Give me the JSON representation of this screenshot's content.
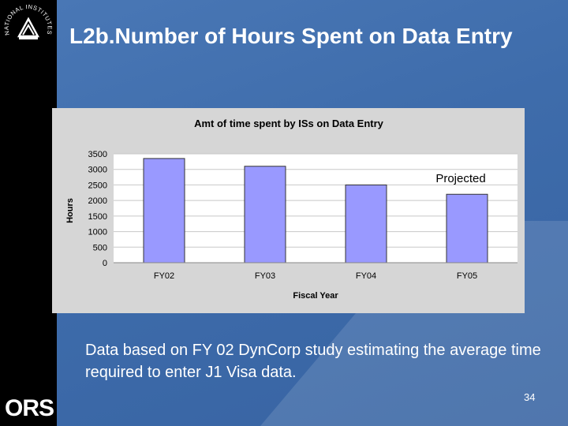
{
  "slide": {
    "title": "L2b.Number of Hours Spent on Data Entry",
    "caption": "Data based on FY 02 DynCorp study estimating the average time required to enter J1 Visa data.",
    "page_number": "34",
    "logo_top_text": "NATIONAL INSTITUTES OF HEALTH",
    "logo_bottom_text": "ORS"
  },
  "colors": {
    "background": "#3e6cab",
    "sidebar": "#000000",
    "bar": "#9999ff",
    "plot_bg": "#ffffff",
    "panel_bg": "#d6d6d6"
  },
  "chart_data": {
    "type": "bar",
    "title": "Amt of time spent by ISs on Data Entry",
    "xlabel": "Fiscal Year",
    "ylabel": "Hours",
    "categories": [
      "FY02",
      "FY03",
      "FY04",
      "FY05"
    ],
    "values": [
      3350,
      3100,
      2500,
      2200
    ],
    "ylim": [
      0,
      3500
    ],
    "yticks": [
      0,
      500,
      1000,
      1500,
      2000,
      2500,
      3000,
      3500
    ],
    "grid": true,
    "annotations": [
      "Projected"
    ]
  }
}
